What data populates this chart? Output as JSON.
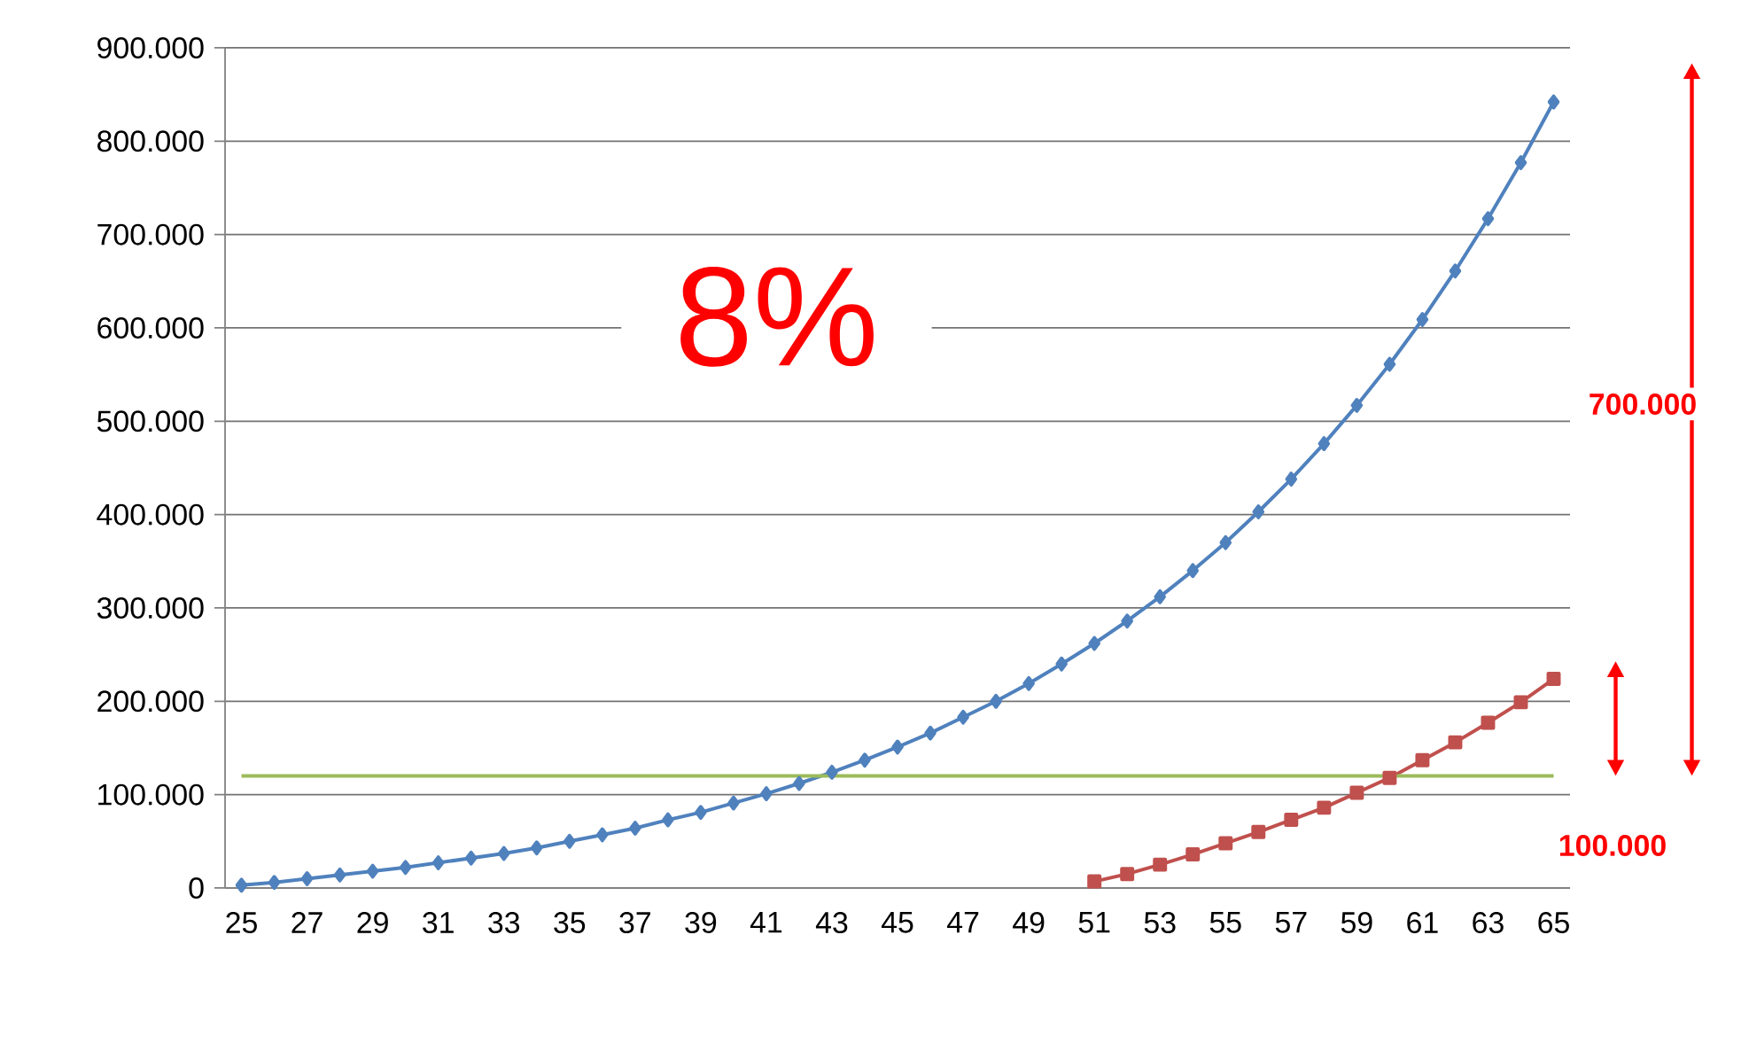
{
  "chart_data": {
    "type": "line",
    "categories": [
      "25",
      null,
      "27",
      null,
      "29",
      null,
      "31",
      null,
      "33",
      null,
      "35",
      null,
      "37",
      null,
      "39",
      null,
      "41",
      null,
      "43",
      null,
      "45",
      null,
      "47",
      null,
      "49",
      null,
      "51",
      null,
      "53",
      null,
      "55",
      null,
      "57",
      null,
      "59",
      null,
      "61",
      null,
      "63",
      null,
      "65"
    ],
    "series": [
      {
        "color": "#4f81bd",
        "marker": "diamond",
        "values": [
          3000,
          6000,
          10000,
          14000,
          18000,
          22000,
          27000,
          32000,
          37000,
          43000,
          50000,
          57000,
          64000,
          73000,
          81000,
          91000,
          101000,
          112000,
          124000,
          137000,
          151000,
          166000,
          183000,
          200000,
          219000,
          240000,
          262000,
          286000,
          312000,
          340000,
          370000,
          403000,
          438000,
          476000,
          517000,
          561000,
          609000,
          661000,
          717000,
          777000,
          842000
        ]
      },
      {
        "color": "#c0504d",
        "marker": "square",
        "values": [
          null,
          null,
          null,
          null,
          null,
          null,
          null,
          null,
          null,
          null,
          null,
          null,
          null,
          null,
          null,
          null,
          null,
          null,
          null,
          null,
          null,
          null,
          null,
          null,
          null,
          null,
          7000,
          15000,
          25000,
          36000,
          48000,
          60000,
          73000,
          86000,
          102000,
          118000,
          137000,
          156000,
          177000,
          199000,
          224000
        ]
      }
    ],
    "ylim": [
      0,
      900000
    ],
    "yticks": [
      {
        "value": 0,
        "label": "0"
      },
      {
        "value": 100000,
        "label": "100.000"
      },
      {
        "value": 200000,
        "label": "200.000"
      },
      {
        "value": 300000,
        "label": "300.000"
      },
      {
        "value": 400000,
        "label": "400.000"
      },
      {
        "value": 500000,
        "label": "500.000"
      },
      {
        "value": 600000,
        "label": "600.000"
      },
      {
        "value": 700000,
        "label": "700.000"
      },
      {
        "value": 800000,
        "label": "800.000"
      },
      {
        "value": 900000,
        "label": "900.000"
      }
    ],
    "grid": "y",
    "line_style": "solid",
    "ref_lines": [
      {
        "axis": "y",
        "value": 120000,
        "color": "#9bbb59"
      }
    ],
    "annotations": [
      "8%",
      "700.000",
      "100.000"
    ]
  }
}
